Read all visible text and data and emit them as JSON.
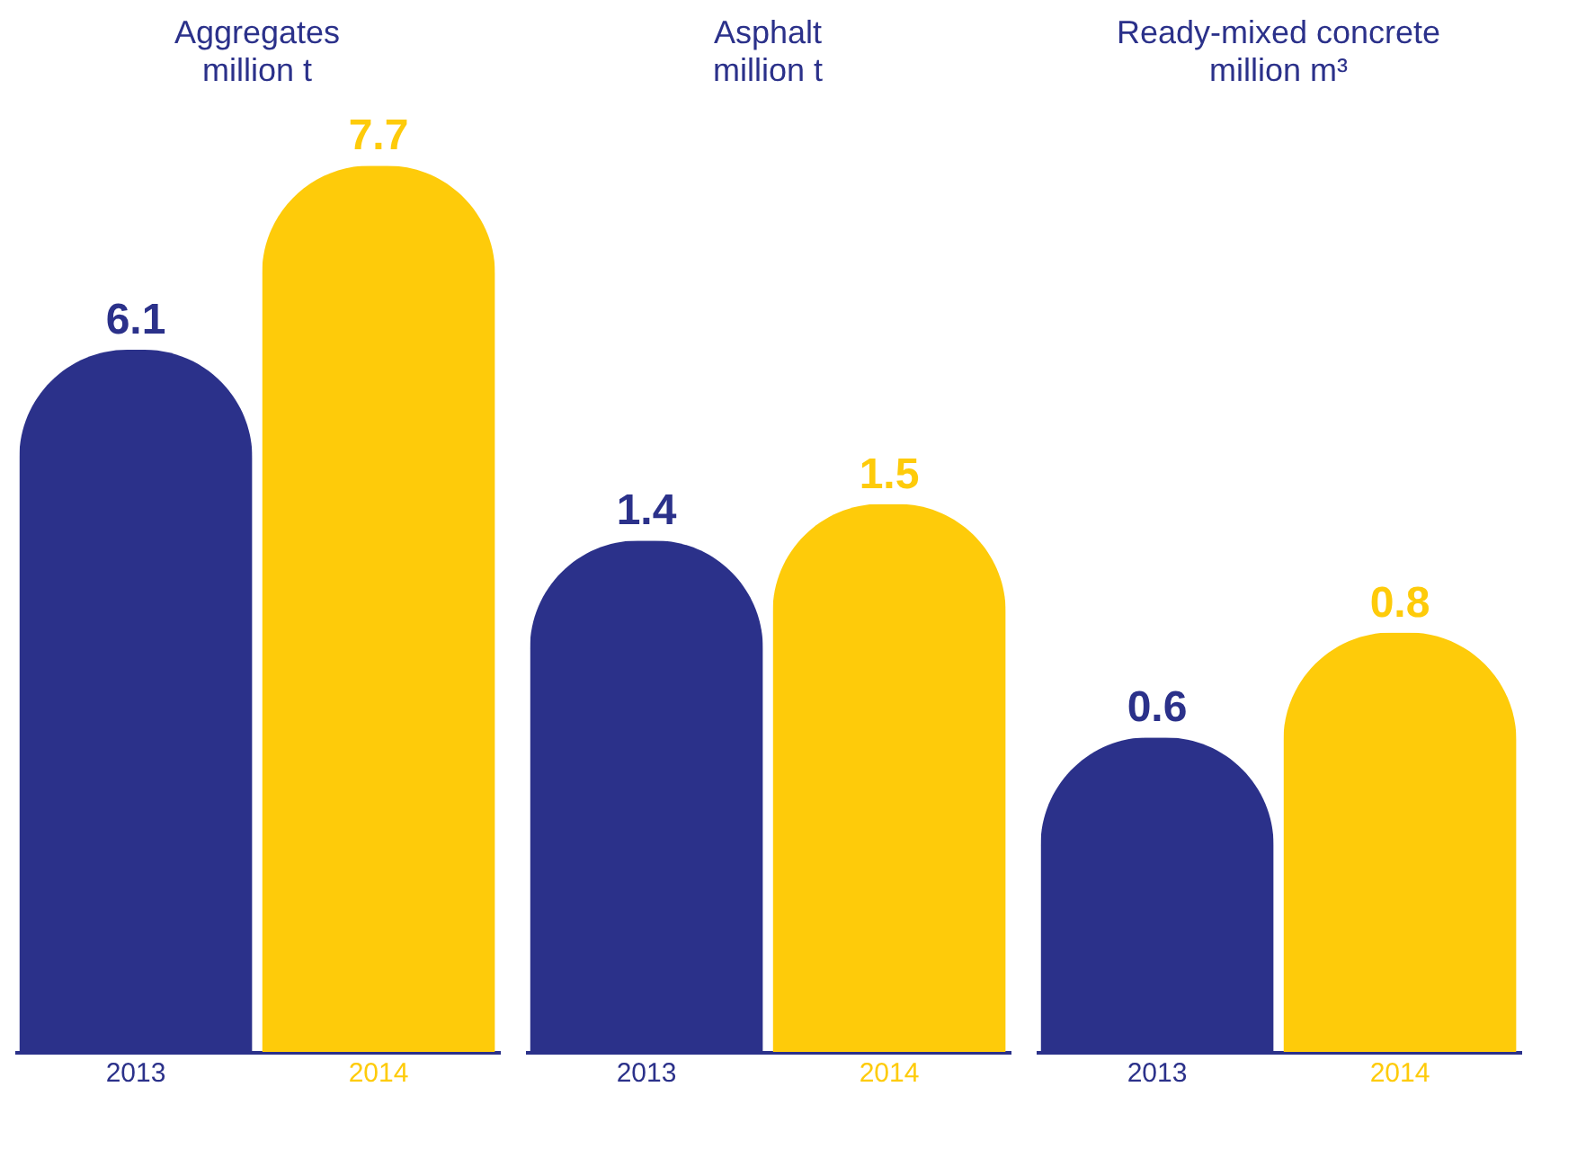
{
  "chart_data": [
    {
      "type": "bar",
      "title": "Aggregates",
      "subtitle": "million t",
      "categories": [
        "2013",
        "2014"
      ],
      "values": [
        6.1,
        7.7
      ],
      "colors": [
        "#2b318a",
        "#fecb0a"
      ],
      "data_labels": true
    },
    {
      "type": "bar",
      "title": "Asphalt",
      "subtitle": "million t",
      "categories": [
        "2013",
        "2014"
      ],
      "values": [
        1.4,
        1.5
      ],
      "colors": [
        "#2b318a",
        "#fecb0a"
      ],
      "data_labels": true
    },
    {
      "type": "bar",
      "title": "Ready-mixed concrete",
      "subtitle": "million m³",
      "categories": [
        "2013",
        "2014"
      ],
      "values": [
        0.6,
        0.8
      ],
      "colors": [
        "#2b318a",
        "#fecb0a"
      ],
      "data_labels": true
    }
  ]
}
